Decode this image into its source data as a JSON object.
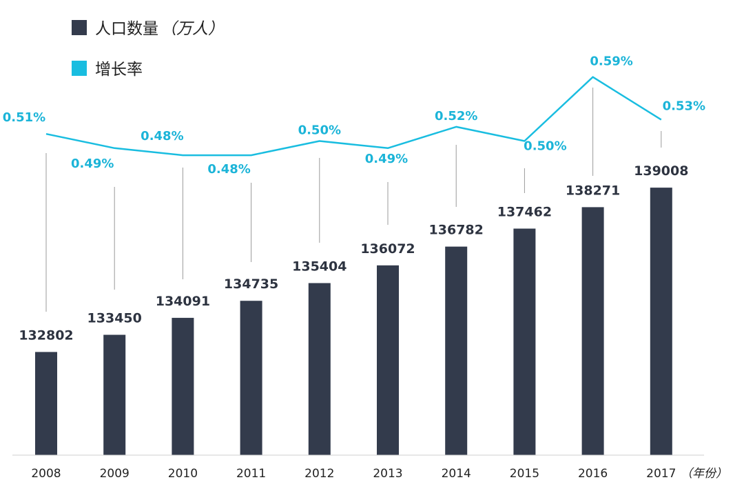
{
  "legend": {
    "population_label": "人口数量",
    "population_unit": "（万人）",
    "rate_label": "增长率"
  },
  "colors": {
    "bar": "#333b4c",
    "line": "#19bde0",
    "rate_text": "#1bb4d8",
    "connector": "#9a9a9a",
    "axis": "#cfcfcf"
  },
  "chart_data": {
    "type": "bar",
    "title": "",
    "xlabel": "（年份）",
    "ylabel": "",
    "categories": [
      "2008",
      "2009",
      "2010",
      "2011",
      "2012",
      "2013",
      "2014",
      "2015",
      "2016",
      "2017"
    ],
    "series": [
      {
        "name": "人口数量（万人）",
        "type": "bar",
        "values": [
          132802,
          133450,
          134091,
          134735,
          135404,
          136072,
          136782,
          137462,
          138271,
          139008
        ],
        "labels": [
          "132802",
          "133450",
          "134091",
          "134735",
          "135404",
          "136072",
          "136782",
          "137462",
          "138271",
          "139008"
        ]
      },
      {
        "name": "增长率",
        "type": "line",
        "values": [
          0.51,
          0.49,
          0.48,
          0.48,
          0.5,
          0.49,
          0.52,
          0.5,
          0.59,
          0.53
        ],
        "labels": [
          "0.51%",
          "0.49%",
          "0.48%",
          "0.48%",
          "0.50%",
          "0.49%",
          "0.52%",
          "0.50%",
          "0.59%",
          "0.53%"
        ]
      }
    ],
    "legend_position": "top-left",
    "grid": false
  }
}
